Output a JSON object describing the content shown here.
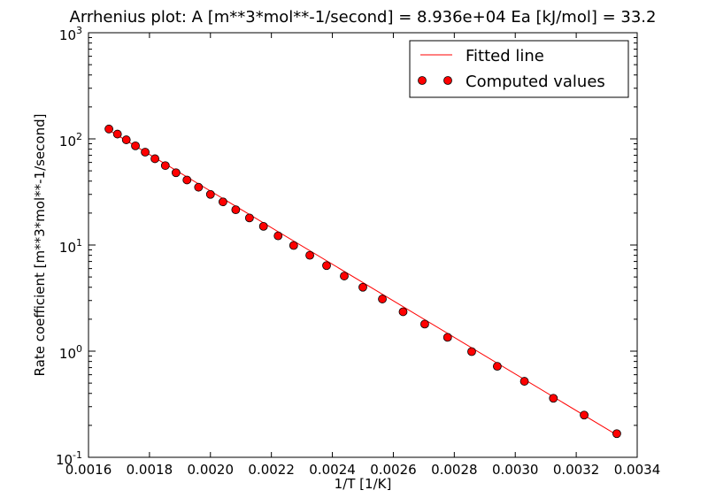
{
  "chart_data": {
    "type": "scatter",
    "title": "Arrhenius plot: A [m**3*mol**-1/second] = 8.936e+04     Ea [kJ/mol] = 33.2",
    "xlabel": "1/T [1/K]",
    "ylabel": "Rate coefficient [m**3*mol**-1/second]",
    "xlim": [
      0.0016,
      0.0034
    ],
    "ylim": [
      0.1,
      1000
    ],
    "yscale": "log",
    "grid": false,
    "legend_position": "top-right",
    "x_ticks": [
      "0.0016",
      "0.0018",
      "0.0020",
      "0.0022",
      "0.0024",
      "0.0026",
      "0.0028",
      "0.0030",
      "0.0032",
      "0.0034"
    ],
    "y_ticks": [
      {
        "base": "10",
        "exp": "-1"
      },
      {
        "base": "10",
        "exp": "0"
      },
      {
        "base": "10",
        "exp": "1"
      },
      {
        "base": "10",
        "exp": "2"
      },
      {
        "base": "10",
        "exp": "3"
      }
    ],
    "series": [
      {
        "name": "Fitted line",
        "kind": "line",
        "color": "#ff0000",
        "x": [
          0.001667,
          0.003333
        ],
        "y": [
          120.8,
          0.1626
        ]
      },
      {
        "name": "Computed values",
        "kind": "markers",
        "color": "#ff0000",
        "edgecolor": "#000000",
        "x": [
          0.001667,
          0.001695,
          0.001724,
          0.001754,
          0.001786,
          0.001818,
          0.001852,
          0.001887,
          0.001923,
          0.001961,
          0.002,
          0.002041,
          0.002083,
          0.002128,
          0.002174,
          0.002222,
          0.002273,
          0.002326,
          0.002381,
          0.002439,
          0.0025,
          0.002564,
          0.002632,
          0.002703,
          0.002778,
          0.002857,
          0.002941,
          0.00303,
          0.003125,
          0.003226,
          0.003333
        ],
        "y": [
          124,
          111,
          98,
          86,
          75,
          65,
          56,
          48,
          41,
          35,
          30,
          25.5,
          21.5,
          18,
          15,
          12.2,
          9.9,
          8.0,
          6.4,
          5.1,
          4.0,
          3.1,
          2.35,
          1.8,
          1.35,
          0.99,
          0.72,
          0.52,
          0.36,
          0.25,
          0.167
        ]
      }
    ]
  }
}
